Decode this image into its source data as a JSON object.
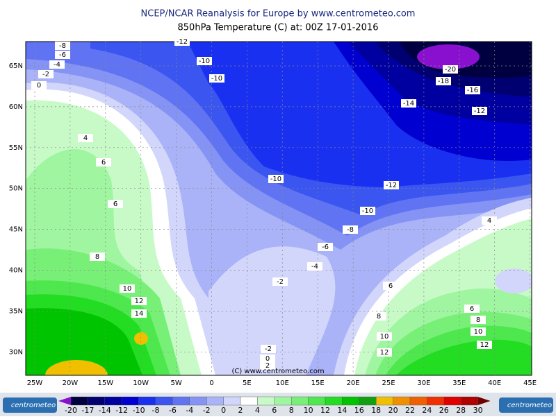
{
  "header": {
    "title": "NCEP/NCAR Reanalysis for Europe by www.centrometeo.com",
    "subtitle": "850hPa Temperature (C) at: 00Z 17-01-2016"
  },
  "map": {
    "lat_labels": [
      "65N",
      "60N",
      "55N",
      "50N",
      "45N",
      "40N",
      "35N",
      "30N"
    ],
    "lon_labels": [
      "25W",
      "20W",
      "15W",
      "10W",
      "5W",
      "0",
      "5E",
      "10E",
      "15E",
      "20E",
      "25E",
      "30E",
      "35E",
      "40E",
      "45E"
    ],
    "contour_labels": [
      "-12",
      "-8",
      "-6",
      "-4",
      "-2",
      "0",
      "-10",
      "-10",
      "-20",
      "-18",
      "-16",
      "-14",
      "-12",
      "4",
      "6",
      "6",
      "-10",
      "-12",
      "-10",
      "-8",
      "-6",
      "-4",
      "-2",
      "8",
      "10",
      "12",
      "14",
      "4",
      "6",
      "6",
      "8",
      "8",
      "10",
      "10",
      "12",
      "12",
      "-2",
      "0",
      "2"
    ],
    "copyright": "(C) www.centrometeo.com"
  },
  "colorbar": {
    "labels": [
      "-20",
      "-17",
      "-14",
      "-12",
      "-10",
      "-8",
      "-6",
      "-4",
      "-2",
      "0",
      "2",
      "4",
      "6",
      "8",
      "10",
      "12",
      "14",
      "16",
      "18",
      "20",
      "22",
      "24",
      "26",
      "28",
      "30"
    ],
    "colors": [
      "#000040",
      "#000070",
      "#0000a0",
      "#0000d0",
      "#1a30f0",
      "#3a55f0",
      "#6073f2",
      "#8593f5",
      "#aab3f8",
      "#d2d6fb",
      "#ffffff",
      "#c8fac8",
      "#a0f5a0",
      "#78f078",
      "#4ee84e",
      "#22dd22",
      "#00c400",
      "#12a012",
      "#f0c000",
      "#f09000",
      "#f06000",
      "#f03000",
      "#e00000",
      "#b00000"
    ],
    "logo": "centrometeo"
  }
}
